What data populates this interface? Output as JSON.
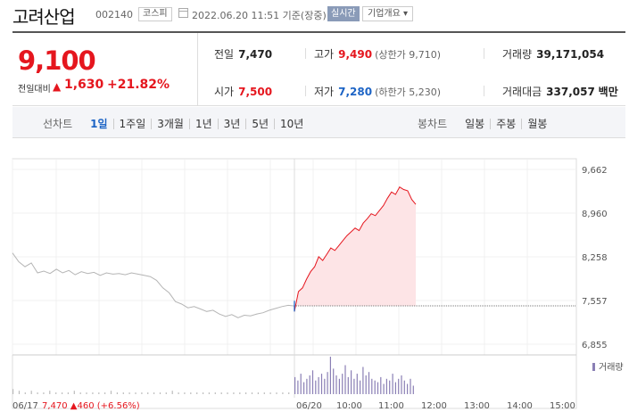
{
  "header": {
    "company": "고려산업",
    "code": "002140",
    "market": "코스피",
    "timestamp": "2022.06.20 11:51 기준(장중)",
    "realtime_label": "실시간",
    "overview_label": "기업개요 ▾"
  },
  "summary": {
    "price": "9,100",
    "change_label": "전일대비",
    "change_value": "1,630",
    "change_rate": "+21.82%",
    "prev_close_label": "전일",
    "prev_close": "7,470",
    "high_label": "고가",
    "high": "9,490",
    "upper_limit": "(상한가 9,710)",
    "volume_label": "거래량",
    "volume": "39,171,054",
    "open_label": "시가",
    "open": "7,500",
    "low_label": "저가",
    "low": "7,280",
    "lower_limit": "(하한가 5,230)",
    "amount_label": "거래대금",
    "amount": "337,057",
    "amount_unit": "백만"
  },
  "tabs": {
    "line_label": "선차트",
    "line_periods": [
      "1일",
      "1주일",
      "3개월",
      "1년",
      "3년",
      "5년",
      "10년"
    ],
    "active_period": 0,
    "candle_label": "봉차트",
    "candle_periods": [
      "일봉",
      "주봉",
      "월봉"
    ]
  },
  "chart": {
    "y_ticks": [
      "9,662",
      "8,960",
      "8,258",
      "7,557",
      "6,855"
    ],
    "x_ticks": [
      "06/17",
      "06/20",
      "10:00",
      "11:00",
      "12:00",
      "13:00",
      "14:00",
      "15:00"
    ],
    "prev_day_summary": "7,470 ▲460 (+6.56%)",
    "volume_legend": "거래량",
    "colors": {
      "up": "#e5161e",
      "down": "#1d64c5",
      "prev": "#b5b5b5",
      "volume": "#8a7fb5",
      "fill": "#fde4e6"
    }
  },
  "chart_data": {
    "type": "line",
    "ylim": [
      6855,
      9662
    ],
    "prev_close": 7470,
    "series": [
      {
        "values": [
          8320,
          8180,
          8100,
          8160,
          8000,
          8030,
          7990,
          8060,
          8000,
          8040,
          7970,
          8020,
          7990,
          8010,
          7960,
          8000,
          7980,
          7990,
          7970,
          8000,
          7980,
          7960,
          7940,
          7880,
          7760,
          7680,
          7540,
          7500,
          7440,
          7460,
          7420,
          7380,
          7400,
          7340,
          7300,
          7330,
          7280,
          7320,
          7310,
          7340,
          7360,
          7400,
          7430,
          7460,
          7480,
          7470
        ]
      },
      {
        "values": [
          7380,
          7700,
          7760,
          7900,
          8020,
          8100,
          8260,
          8200,
          8300,
          8400,
          8360,
          8440,
          8520,
          8600,
          8660,
          8720,
          8680,
          8800,
          8870,
          8950,
          8920,
          9000,
          9080,
          9200,
          9300,
          9260,
          9380,
          9340,
          9320,
          9180,
          9100
        ]
      }
    ],
    "volume": [
      3,
      2,
      1,
      2,
      1,
      1,
      2,
      1,
      1,
      1,
      2,
      1,
      1,
      1,
      1,
      1,
      2,
      1,
      1,
      1,
      1,
      1,
      1,
      1,
      1,
      1,
      2,
      1,
      1,
      1,
      1,
      1,
      1,
      1,
      1,
      1,
      1,
      1,
      1,
      1,
      1,
      1,
      1,
      1,
      1,
      1,
      10,
      8,
      12,
      7,
      9,
      11,
      14,
      8,
      10,
      12,
      9,
      13,
      22,
      15,
      11,
      9,
      12,
      17,
      10,
      14,
      9,
      12,
      8,
      16,
      11,
      13,
      9,
      8,
      7,
      10,
      6,
      9,
      8,
      12,
      7,
      9,
      11,
      8,
      6,
      9,
      5
    ]
  }
}
